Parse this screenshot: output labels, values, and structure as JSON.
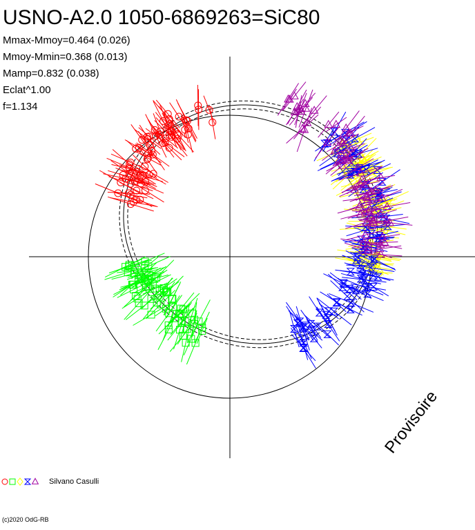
{
  "header": {
    "title": "USNO-A2.0 1050-6869263=SiC80",
    "stats": [
      "Mmax-Mmoy=0.464 (0.026)",
      "Mmoy-Mmin=0.368 (0.013)",
      "Mamp=0.832 (0.038)",
      "Eclat^1.00",
      "f=1.134"
    ]
  },
  "watermark": "Provisoire",
  "legend": {
    "observer": "Silvano Casulli",
    "symbols": [
      {
        "shape": "circle",
        "color": "#ff0000"
      },
      {
        "shape": "square",
        "color": "#00ff00"
      },
      {
        "shape": "diamond",
        "color": "#ffff00"
      },
      {
        "shape": "hourglass",
        "color": "#0000ff"
      },
      {
        "shape": "triangle",
        "color": "#a000a0"
      }
    ]
  },
  "footer": {
    "credit": "(c)2020 OdG-RB"
  },
  "colors": {
    "red": "#ff0000",
    "green": "#00ff00",
    "yellow": "#ffff00",
    "blue": "#0000ff",
    "purple": "#a000a0",
    "axes": "#000000"
  },
  "chart_data": {
    "type": "scatter",
    "title": "USNO-A2.0 1050-6869263=SiC80",
    "description_kind": "polar phase light curve",
    "grid": false,
    "series": [
      {
        "marker": "circle",
        "color": "#ff0000",
        "phase": [
          0.78,
          0.97
        ],
        "points": 72
      },
      {
        "marker": "square",
        "color": "#00ff00",
        "phase": [
          0.55,
          0.7
        ],
        "points": 70
      },
      {
        "marker": "diamond",
        "color": "#ffff00",
        "phase": [
          0.14,
          0.3
        ],
        "points": 70
      },
      {
        "marker": "hourglass",
        "color": "#0000ff",
        "phase": [
          0.12,
          0.43
        ],
        "points": 95
      },
      {
        "marker": "triangle",
        "color": "#a000a0",
        "phase": [
          0.05,
          0.28
        ],
        "points": 70
      }
    ]
  }
}
